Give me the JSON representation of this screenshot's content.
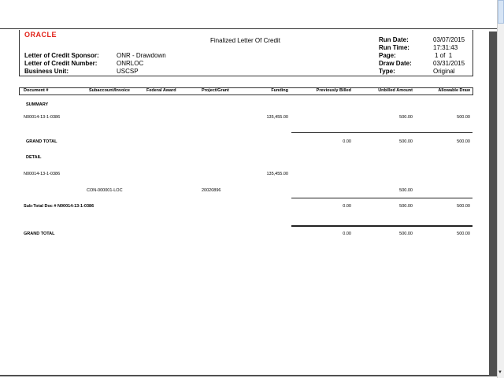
{
  "report": {
    "logo": "ORACLE",
    "title": "Finalized Letter Of Credit",
    "fields": [
      {
        "label": "Letter of Credit Sponsor:",
        "value": "ONR - Drawdown"
      },
      {
        "label": "Letter of Credit Number:",
        "value": "ONRLOC"
      },
      {
        "label": "Business Unit:",
        "value": "USCSP"
      }
    ],
    "run_info": [
      {
        "label": "Run Date:",
        "value": "03/07/2015"
      },
      {
        "label": "Run Time:",
        "value": "17:31:43"
      },
      {
        "label": "Page:",
        "value": "1 of  1"
      },
      {
        "label": "Draw Date:",
        "value": "03/31/2015"
      },
      {
        "label": "Type:",
        "value": "Original"
      }
    ]
  },
  "columns": [
    "Document #",
    "Subaccount/Invoice",
    "Federal Award",
    "Project/Grant",
    "Funding",
    "Previously Billed",
    "Unbilled Amount",
    "Allowable Draw"
  ],
  "summary": {
    "heading": "SUMMARY",
    "row": {
      "document": "N00014-13-1-0386",
      "funding": "135,455.00",
      "unbilled": "500.00",
      "allowable": "500.00"
    },
    "grand_total": {
      "label": "GRAND TOTAL",
      "previously_billed": "0.00",
      "unbilled": "500.00",
      "allowable": "500.00"
    }
  },
  "detail": {
    "heading": "DETAIL",
    "doc_row": {
      "document": "N00014-13-1-0386",
      "funding": "135,455.00"
    },
    "line_row": {
      "subaccount": "CON-000001-LOC",
      "project": "20020896",
      "unbilled": "500.00"
    },
    "subtotal": {
      "label": "Sub-Total Doc # N00014-13-1-0386",
      "previously_billed": "0.00",
      "unbilled": "500.00",
      "allowable": "500.00"
    },
    "grand_total": {
      "label": "GRAND TOTAL",
      "previously_billed": "0.00",
      "unbilled": "500.00",
      "allowable": "500.00"
    }
  }
}
